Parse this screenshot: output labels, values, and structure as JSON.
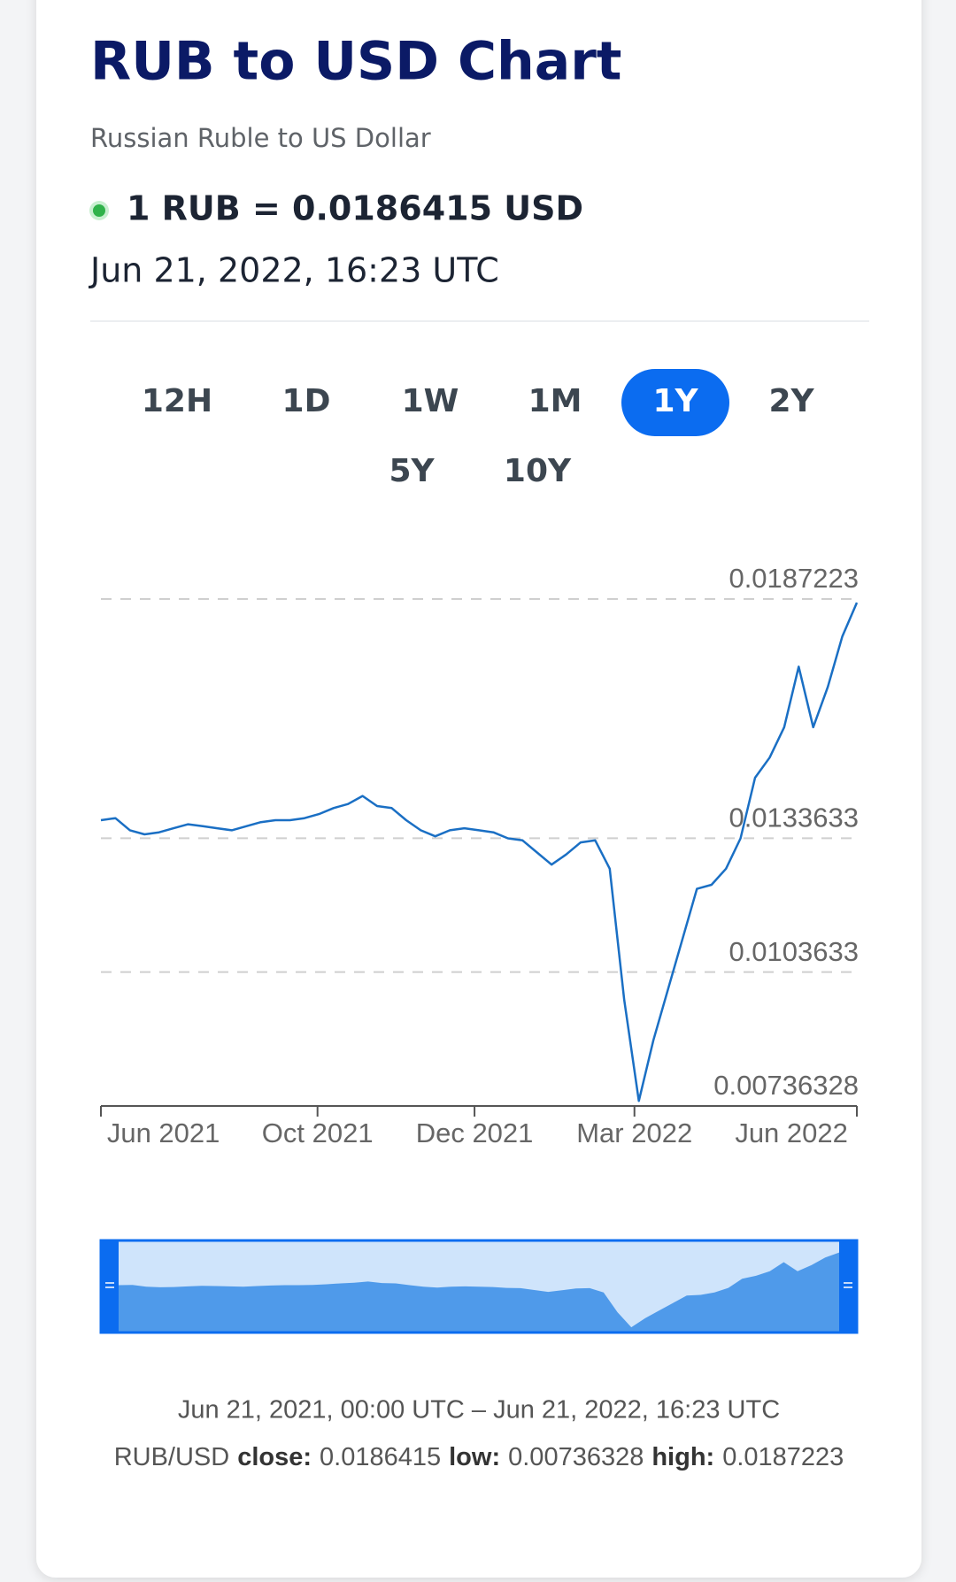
{
  "header": {
    "title": "RUB to USD Chart",
    "subtitle": "Russian Ruble to US Dollar",
    "rate": "1 RUB = 0.0186415 USD",
    "timestamp": "Jun 21, 2022, 16:23 UTC"
  },
  "ranges": {
    "items": [
      "12H",
      "1D",
      "1W",
      "1M",
      "1Y",
      "2Y",
      "5Y",
      "10Y"
    ],
    "active_index": 4
  },
  "chart_data": {
    "type": "line",
    "color": "#1a6fc4",
    "values": [
      0.013767,
      0.013812,
      0.013541,
      0.01345,
      0.013495,
      0.013586,
      0.013676,
      0.013631,
      0.013586,
      0.013541,
      0.013631,
      0.013722,
      0.013767,
      0.013767,
      0.013812,
      0.013903,
      0.014038,
      0.014129,
      0.01431,
      0.014084,
      0.014038,
      0.013767,
      0.013541,
      0.013405,
      0.013541,
      0.013586,
      0.013541,
      0.013495,
      0.01336,
      0.013314,
      0.013043,
      0.012771,
      0.012997,
      0.013269,
      0.013314,
      0.012681,
      0.009739,
      0.007476,
      0.008834,
      0.009966,
      0.011097,
      0.012228,
      0.012319,
      0.012681,
      0.01336,
      0.014717,
      0.01517,
      0.015849,
      0.017206,
      0.015849,
      0.016754,
      0.017885,
      0.0186415
    ],
    "xlim": [
      0,
      52
    ],
    "xticks": [
      {
        "value": 4.3,
        "label": "Jun 2021"
      },
      {
        "value": 14.9,
        "label": "Oct 2021"
      },
      {
        "value": 25.7,
        "label": "Dec 2021"
      },
      {
        "value": 36.7,
        "label": "Mar 2022"
      },
      {
        "value": 47.5,
        "label": "Jun 2022"
      }
    ],
    "ylim": [
      0.00736328,
      0.0187223
    ],
    "yticks": [
      0.00736328,
      0.0103633,
      0.0133633,
      0.0187223
    ],
    "grid": true
  },
  "footer": {
    "range": "Jun 21, 2021, 00:00 UTC – Jun 21, 2022, 16:23 UTC",
    "pair": "RUB/USD",
    "stats": [
      {
        "label": "close:",
        "value": 0.0186415
      },
      {
        "label": "low:",
        "value": 0.00736328
      },
      {
        "label": "high:",
        "value": 0.0187223
      }
    ]
  }
}
